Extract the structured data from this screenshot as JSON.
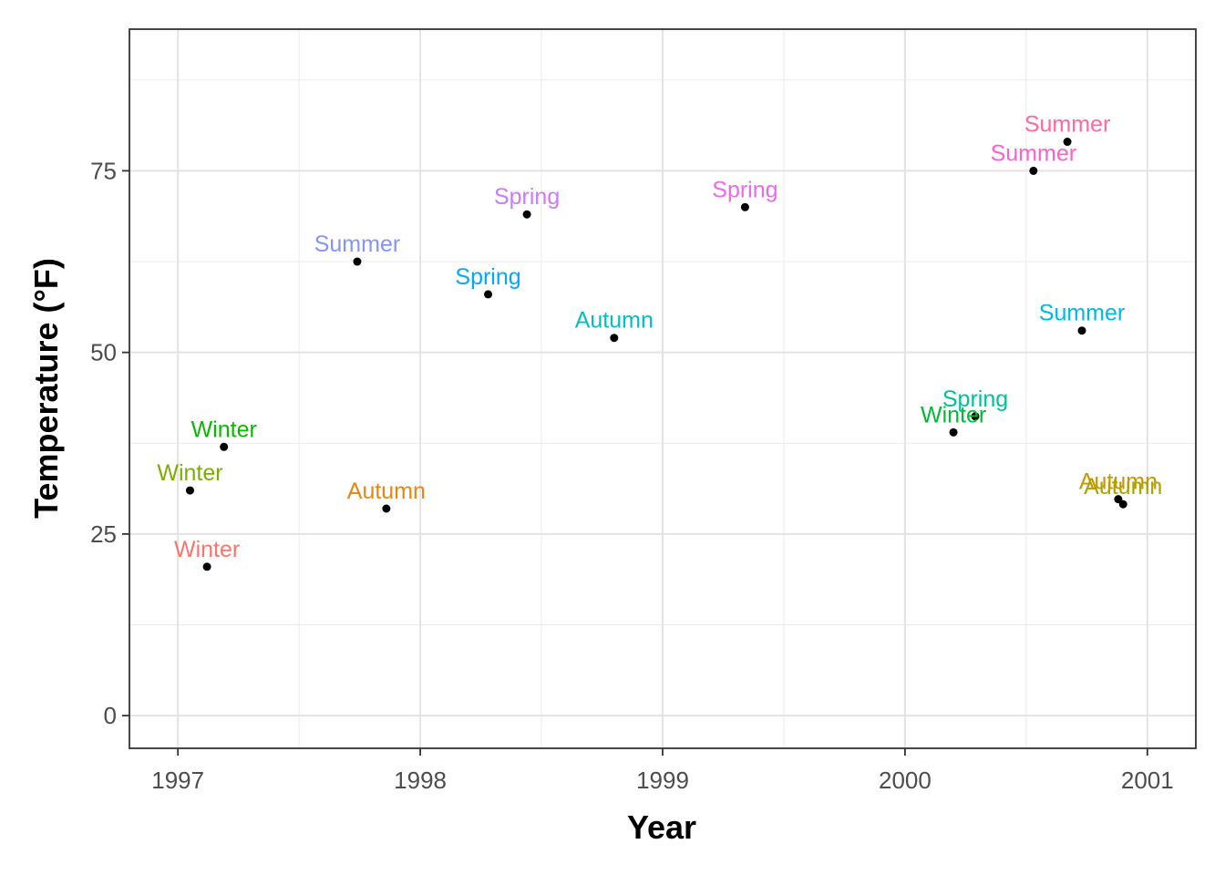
{
  "chart_data": {
    "type": "scatter",
    "title": "",
    "xlabel": "Year",
    "ylabel": "Temperature (°F)",
    "xlim": [
      1996.8,
      2001.2
    ],
    "ylim": [
      -4.5,
      94.5
    ],
    "x_ticks": [
      1997,
      1998,
      1999,
      2000,
      2001
    ],
    "x_tick_labels": [
      "1997",
      "1998",
      "1999",
      "2000",
      "2001"
    ],
    "y_ticks": [
      0,
      25,
      50,
      75
    ],
    "y_tick_labels": [
      "0",
      "25",
      "50",
      "75"
    ],
    "grid": true,
    "legend": "none",
    "point_color": "#000000",
    "points": [
      {
        "x": 1997.05,
        "y": 31.0,
        "label": "Winter",
        "color": "#7CAE00"
      },
      {
        "x": 1997.12,
        "y": 20.5,
        "label": "Winter",
        "color": "#F8766D"
      },
      {
        "x": 1997.19,
        "y": 37.0,
        "label": "Winter",
        "color": "#0CB702"
      },
      {
        "x": 1997.74,
        "y": 62.5,
        "label": "Summer",
        "color": "#8494FF"
      },
      {
        "x": 1997.86,
        "y": 28.5,
        "label": "Autumn",
        "color": "#E68613"
      },
      {
        "x": 1998.28,
        "y": 58.0,
        "label": "Spring",
        "color": "#00A9FF"
      },
      {
        "x": 1998.44,
        "y": 69.0,
        "label": "Spring",
        "color": "#C77CFF"
      },
      {
        "x": 1998.8,
        "y": 52.0,
        "label": "Autumn",
        "color": "#00BFC4"
      },
      {
        "x": 1999.34,
        "y": 70.0,
        "label": "Spring",
        "color": "#ED68ED"
      },
      {
        "x": 2000.2,
        "y": 39.0,
        "label": "Winter",
        "color": "#00BA38"
      },
      {
        "x": 2000.29,
        "y": 41.2,
        "label": "Spring",
        "color": "#00C19A"
      },
      {
        "x": 2000.53,
        "y": 75.0,
        "label": "Summer",
        "color": "#FF61CC"
      },
      {
        "x": 2000.67,
        "y": 79.0,
        "label": "Summer",
        "color": "#FF68A1"
      },
      {
        "x": 2000.73,
        "y": 53.0,
        "label": "Summer",
        "color": "#00B8E7"
      },
      {
        "x": 2000.88,
        "y": 29.8,
        "label": "Autumn",
        "color": "#CD9600"
      },
      {
        "x": 2000.9,
        "y": 29.1,
        "label": "Autumn",
        "color": "#ABA300"
      }
    ]
  }
}
